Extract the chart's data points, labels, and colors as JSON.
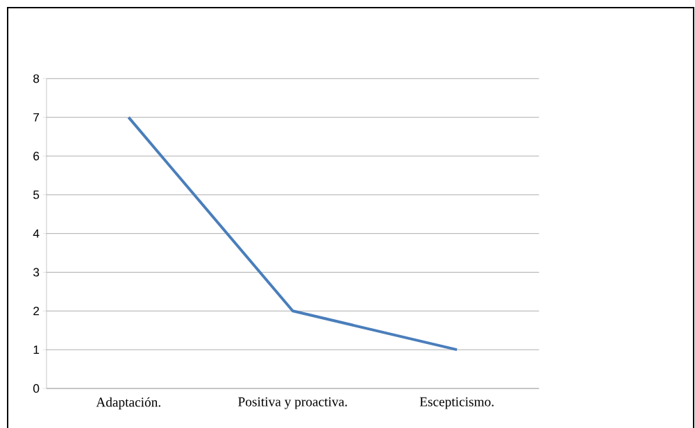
{
  "chart_data": {
    "type": "line",
    "categories": [
      "Adaptación.",
      "Positiva y proactiva.",
      "Escepticismo."
    ],
    "series": [
      {
        "color": "#4a7ebb",
        "values": [
          7,
          2,
          1
        ]
      }
    ],
    "ylim": [
      0,
      8
    ],
    "yticks": [
      0,
      1,
      2,
      3,
      4,
      5,
      6,
      7,
      8
    ],
    "grid": "y"
  }
}
